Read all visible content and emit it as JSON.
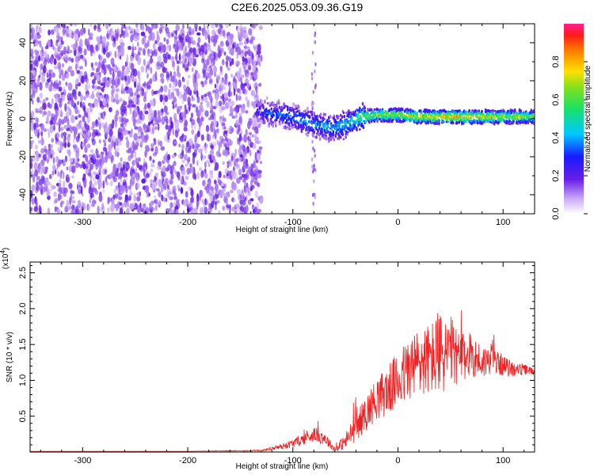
{
  "title": "C2E6.2025.053.09.36.G19",
  "colors": {
    "snr_line": "#ee2222",
    "axis": "#000000",
    "low_amp": "#6a1ee6",
    "mid_amp": "#19e0d0",
    "high_amp": "#ff1020"
  },
  "chart_data": [
    {
      "type": "heatmap",
      "xlabel": "Height of straight line (km)",
      "ylabel": "Frequency (Hz)",
      "xlim": [
        -350,
        130
      ],
      "ylim": [
        -50,
        50
      ],
      "x_ticks": [
        -300,
        -200,
        -100,
        0,
        100
      ],
      "y_ticks": [
        -40,
        -20,
        0,
        20,
        40
      ],
      "colorbar": {
        "label": "Normalized spectral amplitude",
        "range": [
          0,
          1
        ],
        "ticks": [
          0.0,
          0.2,
          0.4,
          0.6,
          0.8
        ]
      },
      "noise_region": {
        "x_from": -350,
        "x_to": -130
      },
      "signal_track": {
        "x": [
          -135,
          -120,
          -100,
          -80,
          -60,
          -45,
          -35,
          -20,
          0,
          20,
          40,
          60,
          80,
          100,
          130
        ],
        "frequency": [
          4,
          3,
          1,
          -3,
          -5,
          -2,
          1,
          2,
          2,
          1,
          1,
          1,
          1,
          1,
          1
        ],
        "amplitude": [
          0.25,
          0.35,
          0.4,
          0.4,
          0.45,
          0.5,
          0.6,
          0.7,
          0.7,
          0.75,
          0.8,
          0.85,
          0.75,
          0.7,
          0.65
        ]
      }
    },
    {
      "type": "line",
      "xlabel": "Height of straight line (km)",
      "ylabel": "SNR (10 * v/v)",
      "y_multiplier": "(x10^4)",
      "xlim": [
        -350,
        130
      ],
      "ylim": [
        0,
        2.65
      ],
      "x_ticks": [
        -300,
        -200,
        -100,
        0,
        100
      ],
      "y_ticks": [
        0.5,
        1.0,
        1.5,
        2.0,
        2.5
      ],
      "series": [
        {
          "x": [
            -350,
            -300,
            -200,
            -130,
            -110,
            -100,
            -90,
            -80,
            -70,
            -60,
            -50,
            -40,
            -30,
            -20,
            -10,
            0,
            10,
            20,
            30,
            40,
            50,
            60,
            70,
            80,
            90,
            100,
            110,
            120,
            130
          ],
          "y": [
            0.01,
            0.01,
            0.01,
            0.02,
            0.08,
            0.12,
            0.18,
            0.25,
            0.2,
            0.04,
            0.15,
            0.35,
            0.55,
            0.75,
            0.85,
            1.0,
            1.15,
            1.25,
            1.3,
            1.35,
            1.4,
            1.3,
            1.35,
            1.25,
            1.3,
            1.2,
            1.15,
            1.15,
            1.12
          ],
          "spread": [
            0.0,
            0.0,
            0.0,
            0.01,
            0.04,
            0.06,
            0.08,
            0.1,
            0.1,
            0.03,
            0.12,
            0.2,
            0.25,
            0.3,
            0.35,
            0.4,
            0.45,
            0.5,
            0.5,
            0.6,
            0.5,
            0.35,
            0.3,
            0.25,
            0.18,
            0.15,
            0.1,
            0.08,
            0.05
          ]
        }
      ]
    }
  ]
}
